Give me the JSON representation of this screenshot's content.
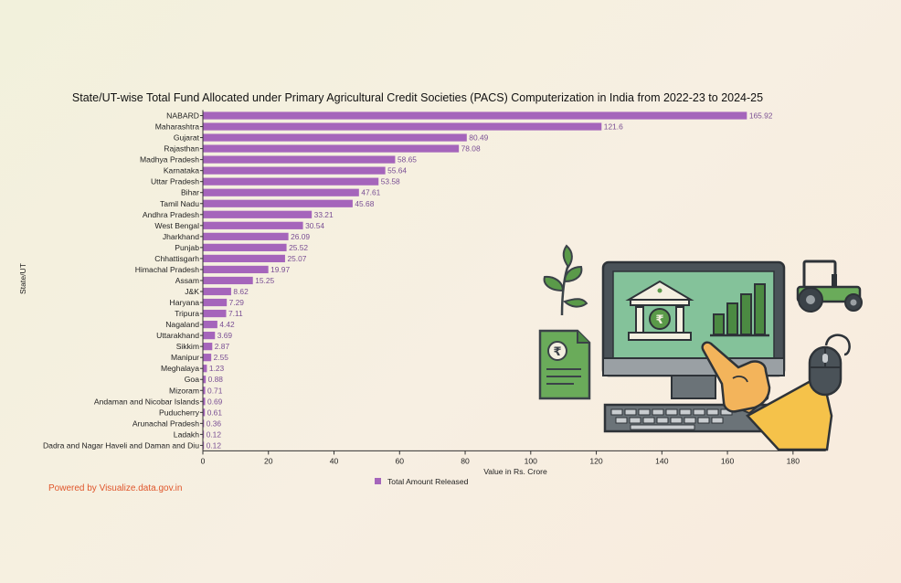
{
  "chart_data": {
    "type": "bar",
    "orientation": "horizontal",
    "title": "State/UT-wise Total Fund Allocated under Primary Agricultural Credit Societies (PACS) Computerization in India from 2022-23 to 2024-25",
    "ylabel": "State/UT",
    "xlabel": "Value in Rs. Crore",
    "xlim": [
      0,
      190
    ],
    "xticks": [
      0,
      20,
      40,
      60,
      80,
      100,
      120,
      140,
      160,
      180
    ],
    "categories": [
      "NABARD",
      "Maharashtra",
      "Gujarat",
      "Rajasthan",
      "Madhya Pradesh",
      "Karnataka",
      "Uttar Pradesh",
      "Bihar",
      "Tamil Nadu",
      "Andhra Pradesh",
      "West Bengal",
      "Jharkhand",
      "Punjab",
      "Chhattisgarh",
      "Himachal Pradesh",
      "Assam",
      "J&K",
      "Haryana",
      "Tripura",
      "Nagaland",
      "Uttarakhand",
      "Sikkim",
      "Manipur",
      "Meghalaya",
      "Goa",
      "Mizoram",
      "Andaman and Nicobar Islands",
      "Puducherry",
      "Arunachal Pradesh",
      "Ladakh",
      "Dadra and Nagar Haveli and Daman and Diu"
    ],
    "series": [
      {
        "name": "Total Amount Released",
        "color": "#a565bb",
        "values": [
          165.92,
          121.6,
          80.49,
          78.08,
          58.65,
          55.64,
          53.58,
          47.61,
          45.68,
          33.21,
          30.54,
          26.09,
          25.52,
          25.07,
          19.97,
          15.25,
          8.62,
          7.29,
          7.11,
          4.42,
          3.69,
          2.87,
          2.55,
          1.23,
          0.88,
          0.71,
          0.69,
          0.61,
          0.36,
          0.12,
          0.12
        ],
        "labels": [
          "165.92",
          "121.6",
          "80.49",
          "78.08",
          "58.65",
          "55.64",
          "53.58",
          "47.61",
          "45.68",
          "33.21",
          "30.54",
          "26.09",
          "25.52",
          "25.07",
          "19.97",
          "15.25",
          "8.62",
          "7.29",
          "7.11",
          "4.42",
          "3.69",
          "2.87",
          "2.55",
          "1.23",
          "0.88",
          "0.71",
          "0.69",
          "0.61",
          "0.36",
          "0.12",
          "0.12"
        ]
      }
    ],
    "legend_position": "bottom-center",
    "grid": false
  },
  "footer": {
    "powered_by": "Powered by Visualize.data.gov.in"
  },
  "illustration": {
    "icons": [
      "sapling-icon",
      "rupee-document-icon",
      "computer-monitor-icon",
      "bank-icon",
      "rupee-icon",
      "bar-chart-icon",
      "keyboard-icon",
      "pointing-hand-icon",
      "tractor-icon",
      "mouse-icon"
    ],
    "colors": {
      "green": "#5a9a49",
      "dark": "#3b4248",
      "screen": "#7fbf95",
      "skin": "#f3b45b",
      "sleeve": "#f5c24a"
    }
  }
}
